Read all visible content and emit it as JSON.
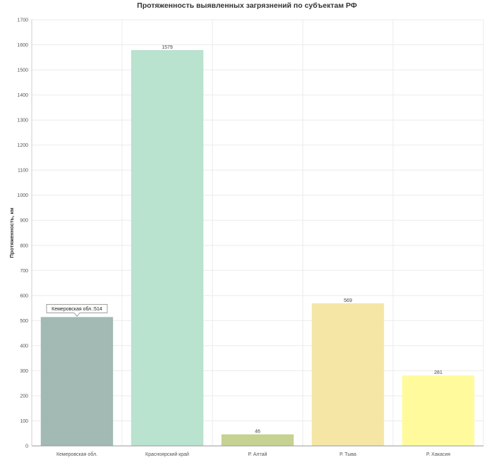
{
  "chart_data": {
    "type": "bar",
    "title": "Протяженность выявленных загрязнений по субъектам РФ",
    "xlabel": "",
    "ylabel": "Протяженность, км",
    "ylim": [
      0,
      1700
    ],
    "yticks": [
      0,
      100,
      200,
      300,
      400,
      500,
      600,
      700,
      800,
      900,
      1000,
      1100,
      1200,
      1300,
      1400,
      1500,
      1600,
      1700
    ],
    "grid": true,
    "categories": [
      "Кемеровская обл.",
      "Красноярский край",
      "Р. Алтай",
      "Р. Тыва",
      "Р. Хакасия"
    ],
    "values": [
      514,
      1579,
      46,
      569,
      281
    ],
    "data_labels": [
      "",
      "1579",
      "46",
      "569",
      "281"
    ],
    "colors": [
      "#a2b9b4",
      "#b9e2cf",
      "#c5d291",
      "#f5e6a6",
      "#fffb9c"
    ],
    "tooltip": {
      "category_index": 0,
      "text": "Кемеровская обл.:514"
    }
  }
}
